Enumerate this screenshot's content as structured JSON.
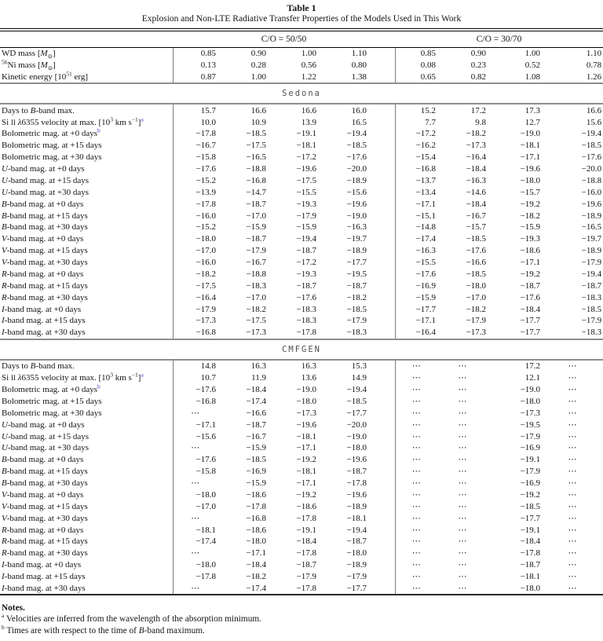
{
  "header": {
    "table_label": "Table 1",
    "title": "Explosion and Non-LTE Radiative Transfer Properties of the Models Used in This Work"
  },
  "groups": [
    {
      "label": "C/O = 50/50"
    },
    {
      "label": "C/O = 30/70"
    }
  ],
  "top_rows": [
    {
      "label_html": "WD mass [<i>M</i><sub>⊙</sub>]",
      "values": [
        "0.85",
        "0.90",
        "1.00",
        "1.10",
        "0.85",
        "0.90",
        "1.00",
        "1.10"
      ]
    },
    {
      "label_html": "<sup>56</sup>Ni mass [<i>M</i><sub>⊙</sub>]",
      "values": [
        "0.13",
        "0.28",
        "0.56",
        "0.80",
        "0.08",
        "0.23",
        "0.52",
        "0.78"
      ]
    },
    {
      "label_html": "Kinetic energy [10<sup>51</sup> erg]",
      "values": [
        "0.87",
        "1.00",
        "1.22",
        "1.38",
        "0.65",
        "0.82",
        "1.08",
        "1.26"
      ]
    }
  ],
  "sections": [
    {
      "name": "Sedona",
      "rows": [
        {
          "label_html": "Days to <i>B</i>-band max.",
          "values": [
            "15.7",
            "16.6",
            "16.6",
            "16.0",
            "15.2",
            "17.2",
            "17.3",
            "16.6"
          ]
        },
        {
          "label_html": "Si <span class=\"sc\">II</span> <i>λ</i>6355 velocity at max. [10<sup>3</sup> km s<sup>−1</sup>]<sup class=\"fn\">a</sup>",
          "values": [
            "10.0",
            "10.9",
            "13.9",
            "16.5",
            "7.7",
            "9.8",
            "12.7",
            "15.6"
          ]
        },
        {
          "label_html": "Bolometric mag. at +0 days<sup class=\"fn\">b</sup>",
          "values": [
            "−17.8",
            "−18.5",
            "−19.1",
            "−19.4",
            "−17.2",
            "−18.2",
            "−19.0",
            "−19.4"
          ]
        },
        {
          "label_html": "Bolometric mag. at +15 days",
          "values": [
            "−16.7",
            "−17.5",
            "−18.1",
            "−18.5",
            "−16.2",
            "−17.3",
            "−18.1",
            "−18.5"
          ]
        },
        {
          "label_html": "Bolometric mag. at +30 days",
          "values": [
            "−15.8",
            "−16.5",
            "−17.2",
            "−17.6",
            "−15.4",
            "−16.4",
            "−17.1",
            "−17.6"
          ]
        },
        {
          "label_html": "<i>U</i>-band mag. at +0 days",
          "values": [
            "−17.6",
            "−18.8",
            "−19.6",
            "−20.0",
            "−16.8",
            "−18.4",
            "−19.6",
            "−20.0"
          ]
        },
        {
          "label_html": "<i>U</i>-band mag. at +15 days",
          "values": [
            "−15.2",
            "−16.8",
            "−17.5",
            "−18.9",
            "−13.7",
            "−16.3",
            "−18.0",
            "−18.8"
          ]
        },
        {
          "label_html": "<i>U</i>-band mag. at +30 days",
          "values": [
            "−13.9",
            "−14.7",
            "−15.5",
            "−15.6",
            "−13.4",
            "−14.6",
            "−15.7",
            "−16.0"
          ]
        },
        {
          "label_html": "<i>B</i>-band mag. at +0 days",
          "values": [
            "−17.8",
            "−18.7",
            "−19.3",
            "−19.6",
            "−17.1",
            "−18.4",
            "−19.2",
            "−19.6"
          ]
        },
        {
          "label_html": "<i>B</i>-band mag. at +15 days",
          "values": [
            "−16.0",
            "−17.0",
            "−17.9",
            "−19.0",
            "−15.1",
            "−16.7",
            "−18.2",
            "−18.9"
          ]
        },
        {
          "label_html": "<i>B</i>-band mag. at +30 days",
          "values": [
            "−15.2",
            "−15.9",
            "−15.9",
            "−16.3",
            "−14.8",
            "−15.7",
            "−15.9",
            "−16.5"
          ]
        },
        {
          "label_html": "<i>V</i>-band mag. at +0 days",
          "values": [
            "−18.0",
            "−18.7",
            "−19.4",
            "−19.7",
            "−17.4",
            "−18.5",
            "−19.3",
            "−19.7"
          ]
        },
        {
          "label_html": "<i>V</i>-band mag. at +15 days",
          "values": [
            "−17.0",
            "−17.9",
            "−18.7",
            "−18.9",
            "−16.3",
            "−17.6",
            "−18.6",
            "−18.9"
          ]
        },
        {
          "label_html": "<i>V</i>-band mag. at +30 days",
          "values": [
            "−16.0",
            "−16.7",
            "−17.2",
            "−17.7",
            "−15.5",
            "−16.6",
            "−17.1",
            "−17.9"
          ]
        },
        {
          "label_html": "<i>R</i>-band mag. at +0 days",
          "values": [
            "−18.2",
            "−18.8",
            "−19.3",
            "−19.5",
            "−17.6",
            "−18.5",
            "−19.2",
            "−19.4"
          ]
        },
        {
          "label_html": "<i>R</i>-band mag. at +15 days",
          "values": [
            "−17.5",
            "−18.3",
            "−18.7",
            "−18.7",
            "−16.9",
            "−18.0",
            "−18.7",
            "−18.7"
          ]
        },
        {
          "label_html": "<i>R</i>-band mag. at +30 days",
          "values": [
            "−16.4",
            "−17.0",
            "−17.6",
            "−18.2",
            "−15.9",
            "−17.0",
            "−17.6",
            "−18.3"
          ]
        },
        {
          "label_html": "<i>I</i>-band mag. at +0 days",
          "values": [
            "−17.9",
            "−18.2",
            "−18.3",
            "−18.5",
            "−17.7",
            "−18.2",
            "−18.4",
            "−18.5"
          ]
        },
        {
          "label_html": "<i>I</i>-band mag. at +15 days",
          "values": [
            "−17.3",
            "−17.5",
            "−18.3",
            "−17.9",
            "−17.1",
            "−17.9",
            "−17.7",
            "−17.9"
          ]
        },
        {
          "label_html": "<i>I</i>-band mag. at +30 days",
          "values": [
            "−16.8",
            "−17.3",
            "−17.8",
            "−18.3",
            "−16.4",
            "−17.3",
            "−17.7",
            "−18.3"
          ]
        }
      ]
    },
    {
      "name": "CMFGEN",
      "rows": [
        {
          "label_html": "Days to <i>B</i>-band max.",
          "values": [
            "14.8",
            "16.3",
            "16.3",
            "15.3",
            "⋯",
            "⋯",
            "17.2",
            "⋯"
          ]
        },
        {
          "label_html": "Si <span class=\"sc\">II</span> <i>λ</i>6355 velocity at max. [10<sup>3</sup> km s<sup>−1</sup>]<sup class=\"fn\">a</sup>",
          "values": [
            "10.7",
            "11.9",
            "13.6",
            "14.9",
            "⋯",
            "⋯",
            "12.1",
            "⋯"
          ]
        },
        {
          "label_html": "Bolometric mag. at +0 days<sup class=\"fn\">b</sup>",
          "values": [
            "−17.6",
            "−18.4",
            "−19.0",
            "−19.4",
            "⋯",
            "⋯",
            "−19.0",
            "⋯"
          ]
        },
        {
          "label_html": "Bolometric mag. at +15 days",
          "values": [
            "−16.8",
            "−17.4",
            "−18.0",
            "−18.5",
            "⋯",
            "⋯",
            "−18.0",
            "⋯"
          ]
        },
        {
          "label_html": "Bolometric mag. at +30 days",
          "values": [
            "⋯",
            "−16.6",
            "−17.3",
            "−17.7",
            "⋯",
            "⋯",
            "−17.3",
            "⋯"
          ]
        },
        {
          "label_html": "<i>U</i>-band mag. at +0 days",
          "values": [
            "−17.1",
            "−18.7",
            "−19.6",
            "−20.0",
            "⋯",
            "⋯",
            "−19.5",
            "⋯"
          ]
        },
        {
          "label_html": "<i>U</i>-band mag. at +15 days",
          "values": [
            "−15.6",
            "−16.7",
            "−18.1",
            "−19.0",
            "⋯",
            "⋯",
            "−17.9",
            "⋯"
          ]
        },
        {
          "label_html": "<i>U</i>-band mag. at +30 days",
          "values": [
            "⋯",
            "−15.9",
            "−17.1",
            "−18.0",
            "⋯",
            "⋯",
            "−16.9",
            "⋯"
          ]
        },
        {
          "label_html": "<i>B</i>-band mag. at +0 days",
          "values": [
            "−17.6",
            "−18.5",
            "−19.2",
            "−19.6",
            "⋯",
            "⋯",
            "−19.1",
            "⋯"
          ]
        },
        {
          "label_html": "<i>B</i>-band mag. at +15 days",
          "values": [
            "−15.8",
            "−16.9",
            "−18.1",
            "−18.7",
            "⋯",
            "⋯",
            "−17.9",
            "⋯"
          ]
        },
        {
          "label_html": "<i>B</i>-band mag. at +30 days",
          "values": [
            "⋯",
            "−15.9",
            "−17.1",
            "−17.8",
            "⋯",
            "⋯",
            "−16.9",
            "⋯"
          ]
        },
        {
          "label_html": "<i>V</i>-band mag. at +0 days",
          "values": [
            "−18.0",
            "−18.6",
            "−19.2",
            "−19.6",
            "⋯",
            "⋯",
            "−19.2",
            "⋯"
          ]
        },
        {
          "label_html": "<i>V</i>-band mag. at +15 days",
          "values": [
            "−17.0",
            "−17.8",
            "−18.6",
            "−18.9",
            "⋯",
            "⋯",
            "−18.5",
            "⋯"
          ]
        },
        {
          "label_html": "<i>V</i>-band mag. at +30 days",
          "values": [
            "⋯",
            "−16.8",
            "−17.8",
            "−18.1",
            "⋯",
            "⋯",
            "−17.7",
            "⋯"
          ]
        },
        {
          "label_html": "<i>R</i>-band mag. at +0 days",
          "values": [
            "−18.1",
            "−18.6",
            "−19.1",
            "−19.4",
            "⋯",
            "⋯",
            "−19.1",
            "⋯"
          ]
        },
        {
          "label_html": "<i>R</i>-band mag. at +15 days",
          "values": [
            "−17.4",
            "−18.0",
            "−18.4",
            "−18.7",
            "⋯",
            "⋯",
            "−18.4",
            "⋯"
          ]
        },
        {
          "label_html": "<i>R</i>-band mag. at +30 days",
          "values": [
            "⋯",
            "−17.1",
            "−17.8",
            "−18.0",
            "⋯",
            "⋯",
            "−17.8",
            "⋯"
          ]
        },
        {
          "label_html": "<i>I</i>-band mag. at +0 days",
          "values": [
            "−18.0",
            "−18.4",
            "−18.7",
            "−18.9",
            "⋯",
            "⋯",
            "−18.7",
            "⋯"
          ]
        },
        {
          "label_html": "<i>I</i>-band mag. at +15 days",
          "values": [
            "−17.8",
            "−18.2",
            "−17.9",
            "−17.9",
            "⋯",
            "⋯",
            "−18.1",
            "⋯"
          ]
        },
        {
          "label_html": "<i>I</i>-band mag. at +30 days",
          "values": [
            "⋯",
            "−17.4",
            "−17.8",
            "−17.7",
            "⋯",
            "⋯",
            "−18.0",
            "⋯"
          ]
        }
      ]
    }
  ],
  "notes": {
    "heading": "Notes.",
    "items": [
      {
        "marker": "a",
        "text_html": "Velocities are inferred from the wavelength of the absorption minimum."
      },
      {
        "marker": "b",
        "text_html": "Times are with respect to the time of <i>B</i>-band maximum."
      }
    ]
  },
  "colors": {
    "footnote_marker": "#4343cf",
    "section_header_text": "#4f4f4f",
    "rule_gray": "#8e8e8e"
  }
}
